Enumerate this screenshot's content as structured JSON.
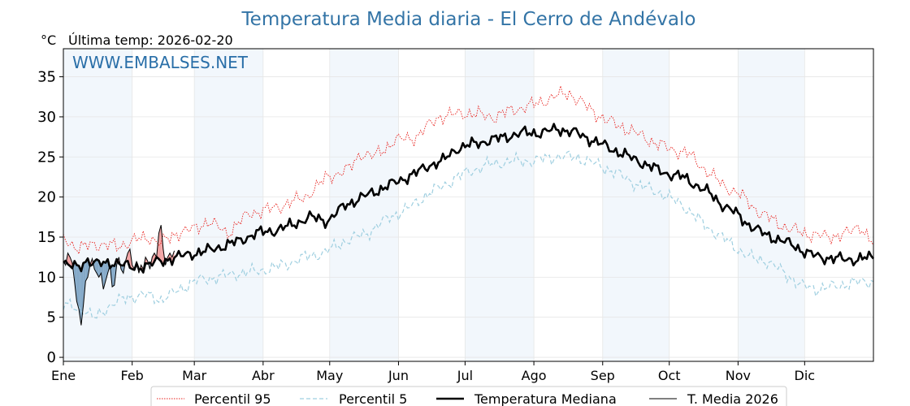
{
  "chart_data": {
    "type": "line",
    "title": "Temperatura Media diaria - El Cerro de Andévalo",
    "unit_label": "°C",
    "subtitle": "Última temp: 2026-02-20",
    "watermark": "WWW.EMBALSES.NET",
    "ylim": [
      -0.5,
      38.5
    ],
    "yticks": [
      "0",
      "5",
      "10",
      "15",
      "20",
      "25",
      "30",
      "35"
    ],
    "xlim": [
      1,
      366
    ],
    "months": [
      "Ene",
      "Feb",
      "Mar",
      "Abr",
      "May",
      "Jun",
      "Jul",
      "Ago",
      "Sep",
      "Oct",
      "Nov",
      "Dic"
    ],
    "month_start_days": [
      1,
      32,
      60,
      91,
      121,
      152,
      182,
      213,
      244,
      274,
      305,
      335
    ],
    "grid": true,
    "legend_position": "bottom",
    "colors": {
      "p95": "#e8201c",
      "p5": "#9fcfe0",
      "median": "#000000",
      "year": "#000000",
      "above_fill": "#f2a3a3",
      "below_fill": "#84a9c8",
      "band": "#e3eef8",
      "title": "#3374a6",
      "watermark": "#2a6fa8"
    },
    "series": [
      {
        "name": "Percentil 95",
        "style": "dotted",
        "anchors": [
          [
            1,
            15.0
          ],
          [
            8,
            13.5
          ],
          [
            15,
            14.2
          ],
          [
            25,
            13.8
          ],
          [
            32,
            14.5
          ],
          [
            40,
            15.0
          ],
          [
            45,
            14.2
          ],
          [
            52,
            15.5
          ],
          [
            60,
            16.0
          ],
          [
            66,
            17.0
          ],
          [
            75,
            15.5
          ],
          [
            85,
            18.0
          ],
          [
            95,
            18.5
          ],
          [
            110,
            20.0
          ],
          [
            120,
            22.5
          ],
          [
            130,
            23.5
          ],
          [
            135,
            25.5
          ],
          [
            141,
            25.0
          ],
          [
            150,
            27.0
          ],
          [
            160,
            27.5
          ],
          [
            170,
            30.0
          ],
          [
            182,
            30.5
          ],
          [
            195,
            30.0
          ],
          [
            205,
            31.0
          ],
          [
            213,
            31.5
          ],
          [
            222,
            32.5
          ],
          [
            229,
            33.0
          ],
          [
            238,
            31.0
          ],
          [
            246,
            29.5
          ],
          [
            255,
            28.5
          ],
          [
            262,
            27.5
          ],
          [
            274,
            26.0
          ],
          [
            282,
            25.5
          ],
          [
            290,
            23.5
          ],
          [
            298,
            21.5
          ],
          [
            305,
            20.5
          ],
          [
            315,
            18.0
          ],
          [
            328,
            16.0
          ],
          [
            335,
            15.5
          ],
          [
            345,
            15.0
          ],
          [
            355,
            15.5
          ],
          [
            360,
            16.5
          ],
          [
            366,
            14.0
          ]
        ]
      },
      {
        "name": "Percentil 5",
        "style": "dashed",
        "anchors": [
          [
            1,
            6.5
          ],
          [
            10,
            6.0
          ],
          [
            15,
            4.8
          ],
          [
            22,
            6.5
          ],
          [
            30,
            7.5
          ],
          [
            38,
            7.8
          ],
          [
            45,
            7.2
          ],
          [
            52,
            8.2
          ],
          [
            60,
            9.5
          ],
          [
            70,
            10.0
          ],
          [
            80,
            10.5
          ],
          [
            90,
            10.8
          ],
          [
            100,
            11.5
          ],
          [
            110,
            12.5
          ],
          [
            118,
            13.0
          ],
          [
            128,
            14.5
          ],
          [
            138,
            15.5
          ],
          [
            148,
            17.5
          ],
          [
            156,
            18.5
          ],
          [
            166,
            20.5
          ],
          [
            176,
            22.0
          ],
          [
            182,
            23.0
          ],
          [
            192,
            24.0
          ],
          [
            204,
            24.5
          ],
          [
            213,
            24.5
          ],
          [
            222,
            25.0
          ],
          [
            232,
            25.0
          ],
          [
            242,
            24.0
          ],
          [
            250,
            23.0
          ],
          [
            260,
            21.5
          ],
          [
            270,
            20.5
          ],
          [
            280,
            19.0
          ],
          [
            290,
            16.5
          ],
          [
            300,
            14.5
          ],
          [
            310,
            12.5
          ],
          [
            318,
            12.0
          ],
          [
            326,
            10.5
          ],
          [
            333,
            9.0
          ],
          [
            340,
            8.5
          ],
          [
            348,
            8.8
          ],
          [
            356,
            9.3
          ],
          [
            366,
            9.5
          ]
        ]
      },
      {
        "name": "Temperatura Mediana",
        "style": "solid-thick",
        "anchors": [
          [
            1,
            12.0
          ],
          [
            8,
            11.0
          ],
          [
            12,
            12.2
          ],
          [
            20,
            11.5
          ],
          [
            26,
            12.0
          ],
          [
            32,
            11.0
          ],
          [
            38,
            11.5
          ],
          [
            45,
            12.0
          ],
          [
            52,
            12.5
          ],
          [
            60,
            13.0
          ],
          [
            66,
            13.3
          ],
          [
            72,
            13.8
          ],
          [
            80,
            14.5
          ],
          [
            88,
            15.5
          ],
          [
            96,
            15.8
          ],
          [
            104,
            16.5
          ],
          [
            112,
            17.5
          ],
          [
            120,
            17.0
          ],
          [
            128,
            19.0
          ],
          [
            136,
            20.0
          ],
          [
            144,
            21.0
          ],
          [
            152,
            22.0
          ],
          [
            160,
            23.0
          ],
          [
            166,
            24.0
          ],
          [
            172,
            24.5
          ],
          [
            178,
            26.0
          ],
          [
            184,
            26.5
          ],
          [
            192,
            27.0
          ],
          [
            200,
            27.5
          ],
          [
            208,
            28.0
          ],
          [
            216,
            28.0
          ],
          [
            224,
            28.5
          ],
          [
            232,
            28.0
          ],
          [
            240,
            27.0
          ],
          [
            248,
            26.0
          ],
          [
            256,
            25.0
          ],
          [
            264,
            24.0
          ],
          [
            272,
            23.0
          ],
          [
            280,
            22.5
          ],
          [
            286,
            21.5
          ],
          [
            292,
            20.5
          ],
          [
            298,
            19.0
          ],
          [
            304,
            18.0
          ],
          [
            310,
            16.5
          ],
          [
            316,
            15.5
          ],
          [
            322,
            14.8
          ],
          [
            330,
            14.0
          ],
          [
            336,
            13.0
          ],
          [
            342,
            12.5
          ],
          [
            350,
            12.3
          ],
          [
            358,
            12.2
          ],
          [
            366,
            12.5
          ]
        ]
      },
      {
        "name": "T. Media 2026",
        "style": "solid-thin",
        "points": [
          [
            1,
            12.0
          ],
          [
            2,
            11.5
          ],
          [
            3,
            13.0
          ],
          [
            4,
            12.5
          ],
          [
            5,
            11.8
          ],
          [
            6,
            9.5
          ],
          [
            7,
            7.0
          ],
          [
            8,
            6.0
          ],
          [
            9,
            4.0
          ],
          [
            10,
            6.5
          ],
          [
            11,
            9.5
          ],
          [
            12,
            10.0
          ],
          [
            13,
            11.5
          ],
          [
            14,
            12.3
          ],
          [
            15,
            11.0
          ],
          [
            16,
            10.5
          ],
          [
            17,
            10.0
          ],
          [
            18,
            10.5
          ],
          [
            19,
            8.5
          ],
          [
            20,
            9.5
          ],
          [
            21,
            10.5
          ],
          [
            22,
            11.5
          ],
          [
            23,
            8.8
          ],
          [
            24,
            9.0
          ],
          [
            25,
            11.5
          ],
          [
            26,
            12.5
          ],
          [
            27,
            11.0
          ],
          [
            28,
            10.5
          ],
          [
            29,
            12.0
          ],
          [
            30,
            13.0
          ],
          [
            31,
            13.5
          ],
          [
            32,
            11.5
          ],
          [
            33,
            11.0
          ],
          [
            34,
            12.0
          ],
          [
            35,
            10.5
          ],
          [
            36,
            11.5
          ],
          [
            37,
            11.0
          ],
          [
            38,
            12.5
          ],
          [
            39,
            12.0
          ],
          [
            40,
            11.0
          ],
          [
            41,
            12.5
          ],
          [
            42,
            13.0
          ],
          [
            43,
            12.5
          ],
          [
            44,
            15.5
          ],
          [
            45,
            16.5
          ],
          [
            46,
            13.5
          ],
          [
            47,
            11.5
          ],
          [
            48,
            12.5
          ],
          [
            49,
            13.0
          ],
          [
            50,
            12.5
          ],
          [
            51,
            13.3
          ]
        ]
      }
    ]
  },
  "legend": {
    "p95": "Percentil 95",
    "p5": "Percentil 5",
    "median": "Temperatura Mediana",
    "year": "T. Media 2026"
  }
}
